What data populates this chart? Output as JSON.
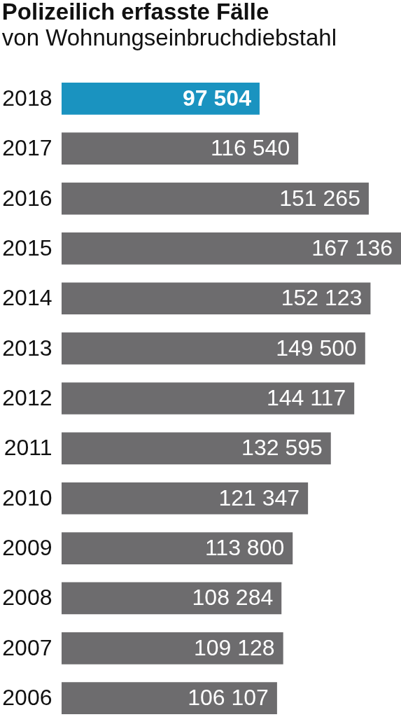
{
  "chart_data": {
    "type": "bar",
    "orientation": "horizontal",
    "title": "Polizeilich erfasste Fälle",
    "subtitle": "von Wohnungseinbruchdiebstahl",
    "categories": [
      "2018",
      "2017",
      "2016",
      "2015",
      "2014",
      "2013",
      "2012",
      "2011",
      "2010",
      "2009",
      "2008",
      "2007",
      "2006"
    ],
    "values": [
      97504,
      116540,
      151265,
      167136,
      152123,
      149500,
      144117,
      132595,
      121347,
      113800,
      108284,
      109128,
      106107
    ],
    "colors": [
      "#1a93c0",
      "#6d6c6e",
      "#6d6c6e",
      "#6d6c6e",
      "#6d6c6e",
      "#6d6c6e",
      "#6d6c6e",
      "#6d6c6e",
      "#6d6c6e",
      "#6d6c6e",
      "#6d6c6e",
      "#6d6c6e",
      "#6d6c6e"
    ],
    "value_labels": [
      "97 504",
      "116 540",
      "151 265",
      "167 136",
      "152 123",
      "149 500",
      "144 117",
      "132 595",
      "121 347",
      "113 800",
      "108 284",
      "109 128",
      "106 107"
    ],
    "tick_labels": "y"
  }
}
